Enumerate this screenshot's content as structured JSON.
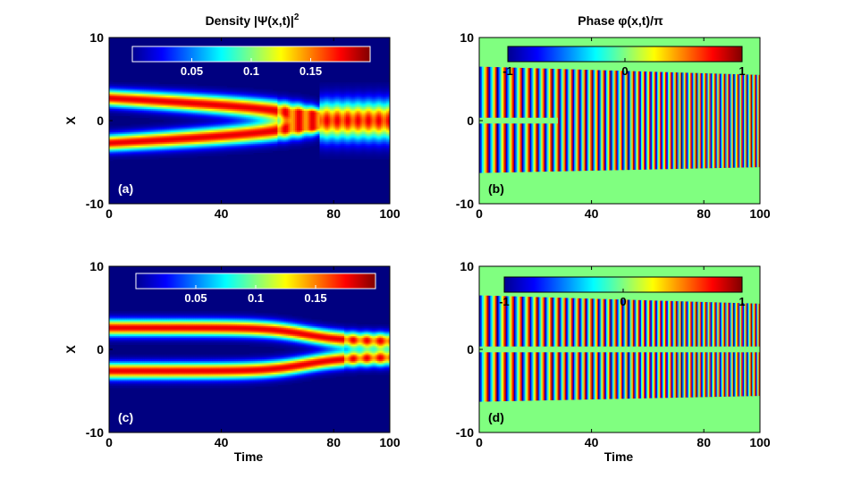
{
  "figure": {
    "column_titles": {
      "density": "Density |Ψ(x,t)|",
      "density_exponent": "2",
      "phase": "Phase φ(x,t)/π"
    }
  },
  "chart_data": [
    {
      "id": "a",
      "type": "heatmap",
      "panel_label": "(a)",
      "quantity": "density",
      "x": {
        "label": "",
        "range": [
          0,
          100
        ],
        "ticks": [
          "0",
          "40",
          "80",
          "100"
        ]
      },
      "y": {
        "label": "X",
        "range": [
          -10,
          10
        ],
        "ticks": [
          "10",
          "0",
          "-10"
        ]
      },
      "colorbar": {
        "range": [
          0,
          0.2
        ],
        "ticks": [
          "0.05",
          "0.1",
          "0.15"
        ],
        "colormap": "jet"
      },
      "description_values": {
        "peak_density": 0.18,
        "initial_peak_positions": [
          -2.5,
          2.5
        ],
        "merge_time": 75
      }
    },
    {
      "id": "b",
      "type": "heatmap",
      "panel_label": "(b)",
      "quantity": "phase",
      "x": {
        "label": "",
        "range": [
          0,
          100
        ],
        "ticks": [
          "0",
          "40",
          "80",
          "100"
        ]
      },
      "y": {
        "label": "",
        "range": [
          -10,
          10
        ],
        "ticks": [
          "10",
          "0",
          "-10"
        ]
      },
      "colorbar": {
        "range": [
          -1,
          1
        ],
        "ticks": [
          "-1",
          "0",
          "1"
        ],
        "colormap": "jet"
      },
      "background_color": "#80ff80"
    },
    {
      "id": "c",
      "type": "heatmap",
      "panel_label": "(c)",
      "quantity": "density",
      "x": {
        "label": "Time",
        "range": [
          0,
          100
        ],
        "ticks": [
          "0",
          "40",
          "80",
          "100"
        ]
      },
      "y": {
        "label": "X",
        "range": [
          -10,
          10
        ],
        "ticks": [
          "10",
          "0",
          "-10"
        ]
      },
      "colorbar": {
        "range": [
          0,
          0.2
        ],
        "ticks": [
          "0.05",
          "0.1",
          "0.15"
        ],
        "colormap": "jet"
      },
      "description_values": {
        "peak_density": 0.18,
        "initial_peak_positions": [
          -2.5,
          2.5
        ],
        "final_peak_positions": [
          -1.0,
          1.0
        ]
      }
    },
    {
      "id": "d",
      "type": "heatmap",
      "panel_label": "(d)",
      "quantity": "phase",
      "x": {
        "label": "Time",
        "range": [
          0,
          100
        ],
        "ticks": [
          "0",
          "40",
          "80",
          "100"
        ]
      },
      "y": {
        "label": "",
        "range": [
          -10,
          10
        ],
        "ticks": [
          "10",
          "0",
          "-10"
        ]
      },
      "colorbar": {
        "range": [
          -1,
          1
        ],
        "ticks": [
          "-1",
          "0",
          "1"
        ],
        "colormap": "jet"
      },
      "background_color": "#80ff80"
    }
  ]
}
